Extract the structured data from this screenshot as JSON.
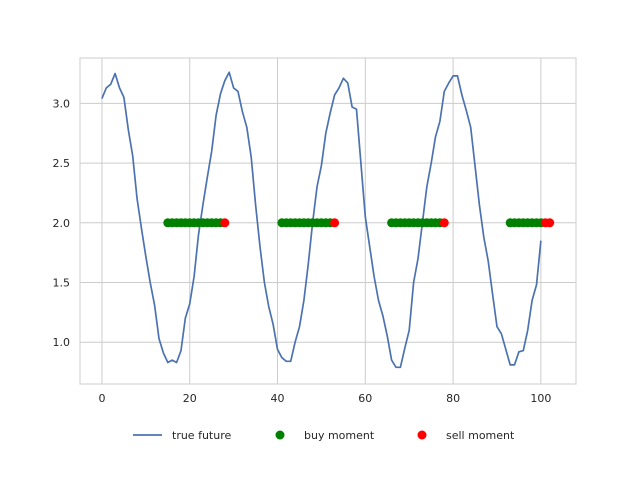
{
  "chart_data": {
    "type": "line",
    "grid": true,
    "legend_position": "bottom",
    "xlim": [
      -5,
      108
    ],
    "ylim": [
      0.65,
      3.38
    ],
    "x_ticks": [
      0,
      20,
      40,
      60,
      80,
      100
    ],
    "y_ticks": [
      1.0,
      1.5,
      2.0,
      2.5,
      3.0
    ],
    "x_tick_labels": [
      "0",
      "20",
      "40",
      "60",
      "80",
      "100"
    ],
    "y_tick_labels": [
      "1.0",
      "1.5",
      "2.0",
      "2.5",
      "3.0"
    ],
    "series": [
      {
        "name": "true future",
        "kind": "line",
        "color": "#4c72b0",
        "x": [
          0,
          1,
          2,
          3,
          4,
          5,
          6,
          7,
          8,
          9,
          10,
          11,
          12,
          13,
          14,
          15,
          16,
          17,
          18,
          19,
          20,
          21,
          22,
          23,
          24,
          25,
          26,
          27,
          28,
          29,
          30,
          31,
          32,
          33,
          34,
          35,
          36,
          37,
          38,
          39,
          40,
          41,
          42,
          43,
          44,
          45,
          46,
          47,
          48,
          49,
          50,
          51,
          52,
          53,
          54,
          55,
          56,
          57,
          58,
          59,
          60,
          61,
          62,
          63,
          64,
          65,
          66,
          67,
          68,
          69,
          70,
          71,
          72,
          73,
          74,
          75,
          76,
          77,
          78,
          79,
          80,
          81,
          82,
          83,
          84,
          85,
          86,
          87,
          88,
          89,
          90,
          91,
          92,
          93,
          94,
          95,
          96,
          97,
          98,
          99,
          100
        ],
        "values": [
          3.04,
          3.13,
          3.16,
          3.25,
          3.13,
          3.05,
          2.78,
          2.56,
          2.2,
          1.95,
          1.72,
          1.5,
          1.31,
          1.03,
          0.91,
          0.83,
          0.85,
          0.83,
          0.93,
          1.2,
          1.32,
          1.55,
          1.9,
          2.15,
          2.38,
          2.6,
          2.9,
          3.08,
          3.19,
          3.26,
          3.13,
          3.1,
          2.93,
          2.8,
          2.55,
          2.15,
          1.8,
          1.5,
          1.3,
          1.15,
          0.94,
          0.87,
          0.84,
          0.84,
          1.0,
          1.13,
          1.35,
          1.65,
          2.0,
          2.3,
          2.48,
          2.75,
          2.92,
          3.07,
          3.13,
          3.21,
          3.17,
          2.97,
          2.95,
          2.5,
          2.05,
          1.8,
          1.55,
          1.35,
          1.22,
          1.05,
          0.85,
          0.79,
          0.79,
          0.95,
          1.1,
          1.5,
          1.7,
          2.0,
          2.3,
          2.5,
          2.72,
          2.85,
          3.1,
          3.17,
          3.23,
          3.23,
          3.07,
          2.94,
          2.8,
          2.48,
          2.15,
          1.88,
          1.68,
          1.4,
          1.13,
          1.07,
          0.94,
          0.81,
          0.81,
          0.92,
          0.93,
          1.1,
          1.35,
          1.48,
          1.85
        ]
      },
      {
        "name": "buy moment",
        "kind": "scatter",
        "color": "#008000",
        "x": [
          15,
          16,
          17,
          18,
          19,
          20,
          21,
          22,
          23,
          24,
          25,
          26,
          27,
          41,
          42,
          43,
          44,
          45,
          46,
          47,
          48,
          49,
          50,
          51,
          52,
          66,
          67,
          68,
          69,
          70,
          71,
          72,
          73,
          74,
          75,
          76,
          77,
          93,
          94,
          95,
          96,
          97,
          98,
          99,
          100
        ],
        "values": [
          2,
          2,
          2,
          2,
          2,
          2,
          2,
          2,
          2,
          2,
          2,
          2,
          2,
          2,
          2,
          2,
          2,
          2,
          2,
          2,
          2,
          2,
          2,
          2,
          2,
          2,
          2,
          2,
          2,
          2,
          2,
          2,
          2,
          2,
          2,
          2,
          2,
          2,
          2,
          2,
          2,
          2,
          2,
          2,
          2
        ]
      },
      {
        "name": "sell moment",
        "kind": "scatter",
        "color": "#ff0000",
        "x": [
          28,
          53,
          78,
          101,
          102
        ],
        "values": [
          2,
          2,
          2,
          2,
          2
        ]
      }
    ]
  }
}
